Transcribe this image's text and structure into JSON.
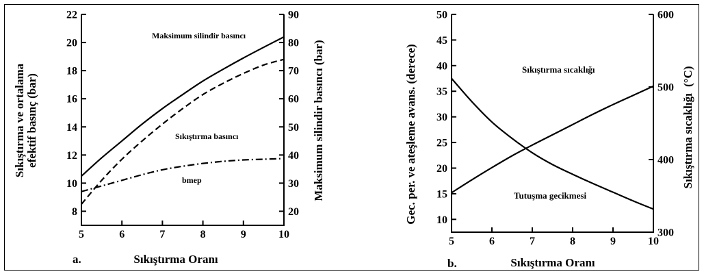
{
  "chart_data": [
    {
      "type": "line",
      "panel_label": "a.",
      "xlabel": "Sıkıştırma Oranı",
      "ylabel_left": [
        "Sıkıştırma ve ortalama",
        "efektif basınç (bar)"
      ],
      "ylabel_right": "Maksimum silindir basıncı (bar)",
      "xlim": [
        5,
        10
      ],
      "ylim_left": [
        7,
        22
      ],
      "ylim_right": [
        15,
        90
      ],
      "x_ticks": [
        "5",
        "6",
        "7",
        "8",
        "9",
        "10"
      ],
      "y_ticks_left": [
        "8",
        "10",
        "12",
        "14",
        "16",
        "18",
        "20",
        "22"
      ],
      "y_ticks_right": [
        "20",
        "30",
        "40",
        "50",
        "60",
        "70",
        "80",
        "90"
      ],
      "series": [
        {
          "name": "Maksimum silindir basıncı",
          "axis": "right",
          "style": "solid",
          "x": [
            5,
            5.5,
            6,
            6.5,
            7,
            7.5,
            8,
            8.5,
            9,
            9.5,
            10
          ],
          "y": [
            32.5,
            39,
            45,
            51,
            56.5,
            61.5,
            66.3,
            70.5,
            74.5,
            78.3,
            82
          ]
        },
        {
          "name": "Sıkıştırma basıncı",
          "axis": "left",
          "style": "dashed",
          "x": [
            5,
            5.5,
            6,
            6.5,
            7,
            7.5,
            8,
            8.5,
            9,
            9.5,
            10
          ],
          "y": [
            8.5,
            10.2,
            11.7,
            13.0,
            14.2,
            15.3,
            16.3,
            17.1,
            17.8,
            18.4,
            18.8
          ]
        },
        {
          "name": "bmep",
          "axis": "left",
          "style": "dashdot",
          "x": [
            5,
            5.5,
            6,
            6.5,
            7,
            7.5,
            8,
            8.5,
            9,
            9.5,
            10
          ],
          "y": [
            9.4,
            9.8,
            10.2,
            10.6,
            10.95,
            11.2,
            11.4,
            11.55,
            11.65,
            11.7,
            11.75
          ]
        }
      ],
      "annotations": [
        "Maksimum silindir basıncı",
        "Sıkıştırma basıncı",
        "bmep"
      ]
    },
    {
      "type": "line",
      "panel_label": "b.",
      "xlabel": "Sıkıştırma Oranı",
      "ylabel_left": "Gec. per. ve ateşleme avans. (derece)",
      "ylabel_right": "Sıkıştırma sıcaklığı",
      "ylabel_right_unit": "(°C)",
      "xlim": [
        5,
        10
      ],
      "ylim_left": [
        7.5,
        50
      ],
      "ylim_right": [
        300,
        600
      ],
      "x_ticks": [
        "5",
        "6",
        "7",
        "8",
        "9",
        "10"
      ],
      "y_ticks_left": [
        "10",
        "15",
        "20",
        "25",
        "30",
        "35",
        "40",
        "45",
        "50"
      ],
      "y_ticks_right": [
        "300",
        "400",
        "500",
        "600"
      ],
      "series": [
        {
          "name": "Sıkıştırma sıcaklığı",
          "axis": "left",
          "style": "solid",
          "x": [
            5,
            5.5,
            6,
            6.5,
            7,
            7.5,
            8,
            8.5,
            9,
            9.5,
            10
          ],
          "y": [
            15.2,
            17.7,
            20.1,
            22.4,
            24.5,
            26.5,
            28.5,
            30.5,
            32.4,
            34.2,
            36.0
          ]
        },
        {
          "name": "Tutuşma gecikmesi",
          "axis": "left",
          "style": "solid",
          "x": [
            5,
            5.5,
            6,
            6.5,
            7,
            7.5,
            8,
            8.5,
            9,
            9.5,
            10
          ],
          "y": [
            37.5,
            33.0,
            29.0,
            25.8,
            23.0,
            20.7,
            18.8,
            17.0,
            15.3,
            13.6,
            12.0
          ]
        }
      ],
      "annotations": [
        "Sıkıştırma sıcaklığı",
        "Tutuşma gecikmesi"
      ]
    }
  ]
}
